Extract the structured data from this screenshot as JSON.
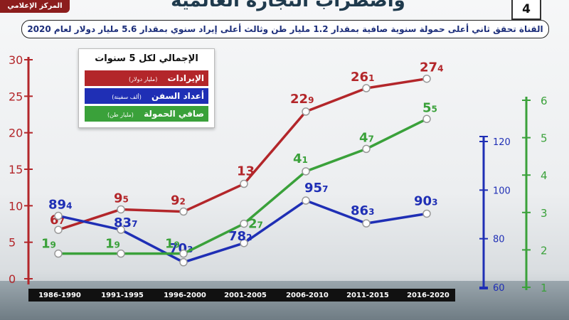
{
  "header": {
    "title": "واضطراب التجارة العالمية",
    "page_number": "4",
    "logo_text": "المركز الإعلامي",
    "subtitle": "القناة تحقق ثاني أعلى حمولة سنوية صافية بمقدار 1.2 مليار طن وثالث أعلى إيراد سنوي بمقدار 5.6 مليار دولار لعام 2020"
  },
  "legend": {
    "title": "الإجمالي لكل 5 سنوات",
    "items": [
      {
        "label": "الإيرادات",
        "unit": "(مليار دولار)",
        "color": "#b3262a"
      },
      {
        "label": "أعداد السفن",
        "unit": "(ألف سفينة)",
        "color": "#1f2fb5"
      },
      {
        "label": "صافي الحمولة",
        "unit": "(مليار طن)",
        "color": "#3aa13a"
      }
    ]
  },
  "chart_data": {
    "type": "line",
    "categories": [
      "1986-1990",
      "1991-1995",
      "1996-2000",
      "2001-2005",
      "2006-2010",
      "2011-2015",
      "2016-2020"
    ],
    "series": [
      {
        "name": "الإيرادات",
        "unit": "(مليار دولار)",
        "axis": "left",
        "color": "#b3262a",
        "values": [
          6.7,
          9.5,
          9.2,
          13,
          22.9,
          26.1,
          27.4
        ],
        "labels": [
          "6.7",
          "9.5",
          "9.2",
          "13",
          "22.9",
          "26.1",
          "27.4"
        ]
      },
      {
        "name": "أعداد السفن",
        "unit": "(ألف سفينة)",
        "axis": "right_inner",
        "color": "#1f2fb5",
        "values": [
          89.4,
          83.7,
          70.3,
          78.2,
          95.7,
          86.3,
          90.3
        ],
        "labels": [
          "89.4",
          "83.7",
          "70.3",
          "78.2",
          "95.7",
          "86.3",
          "90.3"
        ]
      },
      {
        "name": "صافي الحمولة",
        "unit": "(مليار طن)",
        "axis": "right_outer",
        "color": "#3aa13a",
        "values": [
          1.9,
          1.9,
          1.9,
          2.7,
          4.1,
          4.7,
          5.5
        ],
        "labels": [
          "1.9",
          "1.9",
          "1.9",
          "2.7",
          "4.1",
          "4.7",
          "5.5"
        ]
      }
    ],
    "axes": {
      "left": {
        "ticks": [
          0,
          5,
          10,
          15,
          20,
          25,
          30
        ],
        "range": [
          0,
          30
        ],
        "color": "#b3262a"
      },
      "right_inner": {
        "ticks": [
          60,
          80,
          100,
          120
        ],
        "range": [
          60,
          120
        ],
        "color": "#1f2fb5"
      },
      "right_outer": {
        "ticks": [
          1,
          2,
          3,
          4,
          5,
          6
        ],
        "range": [
          1,
          6
        ],
        "color": "#3aa13a"
      }
    },
    "grid": false
  }
}
